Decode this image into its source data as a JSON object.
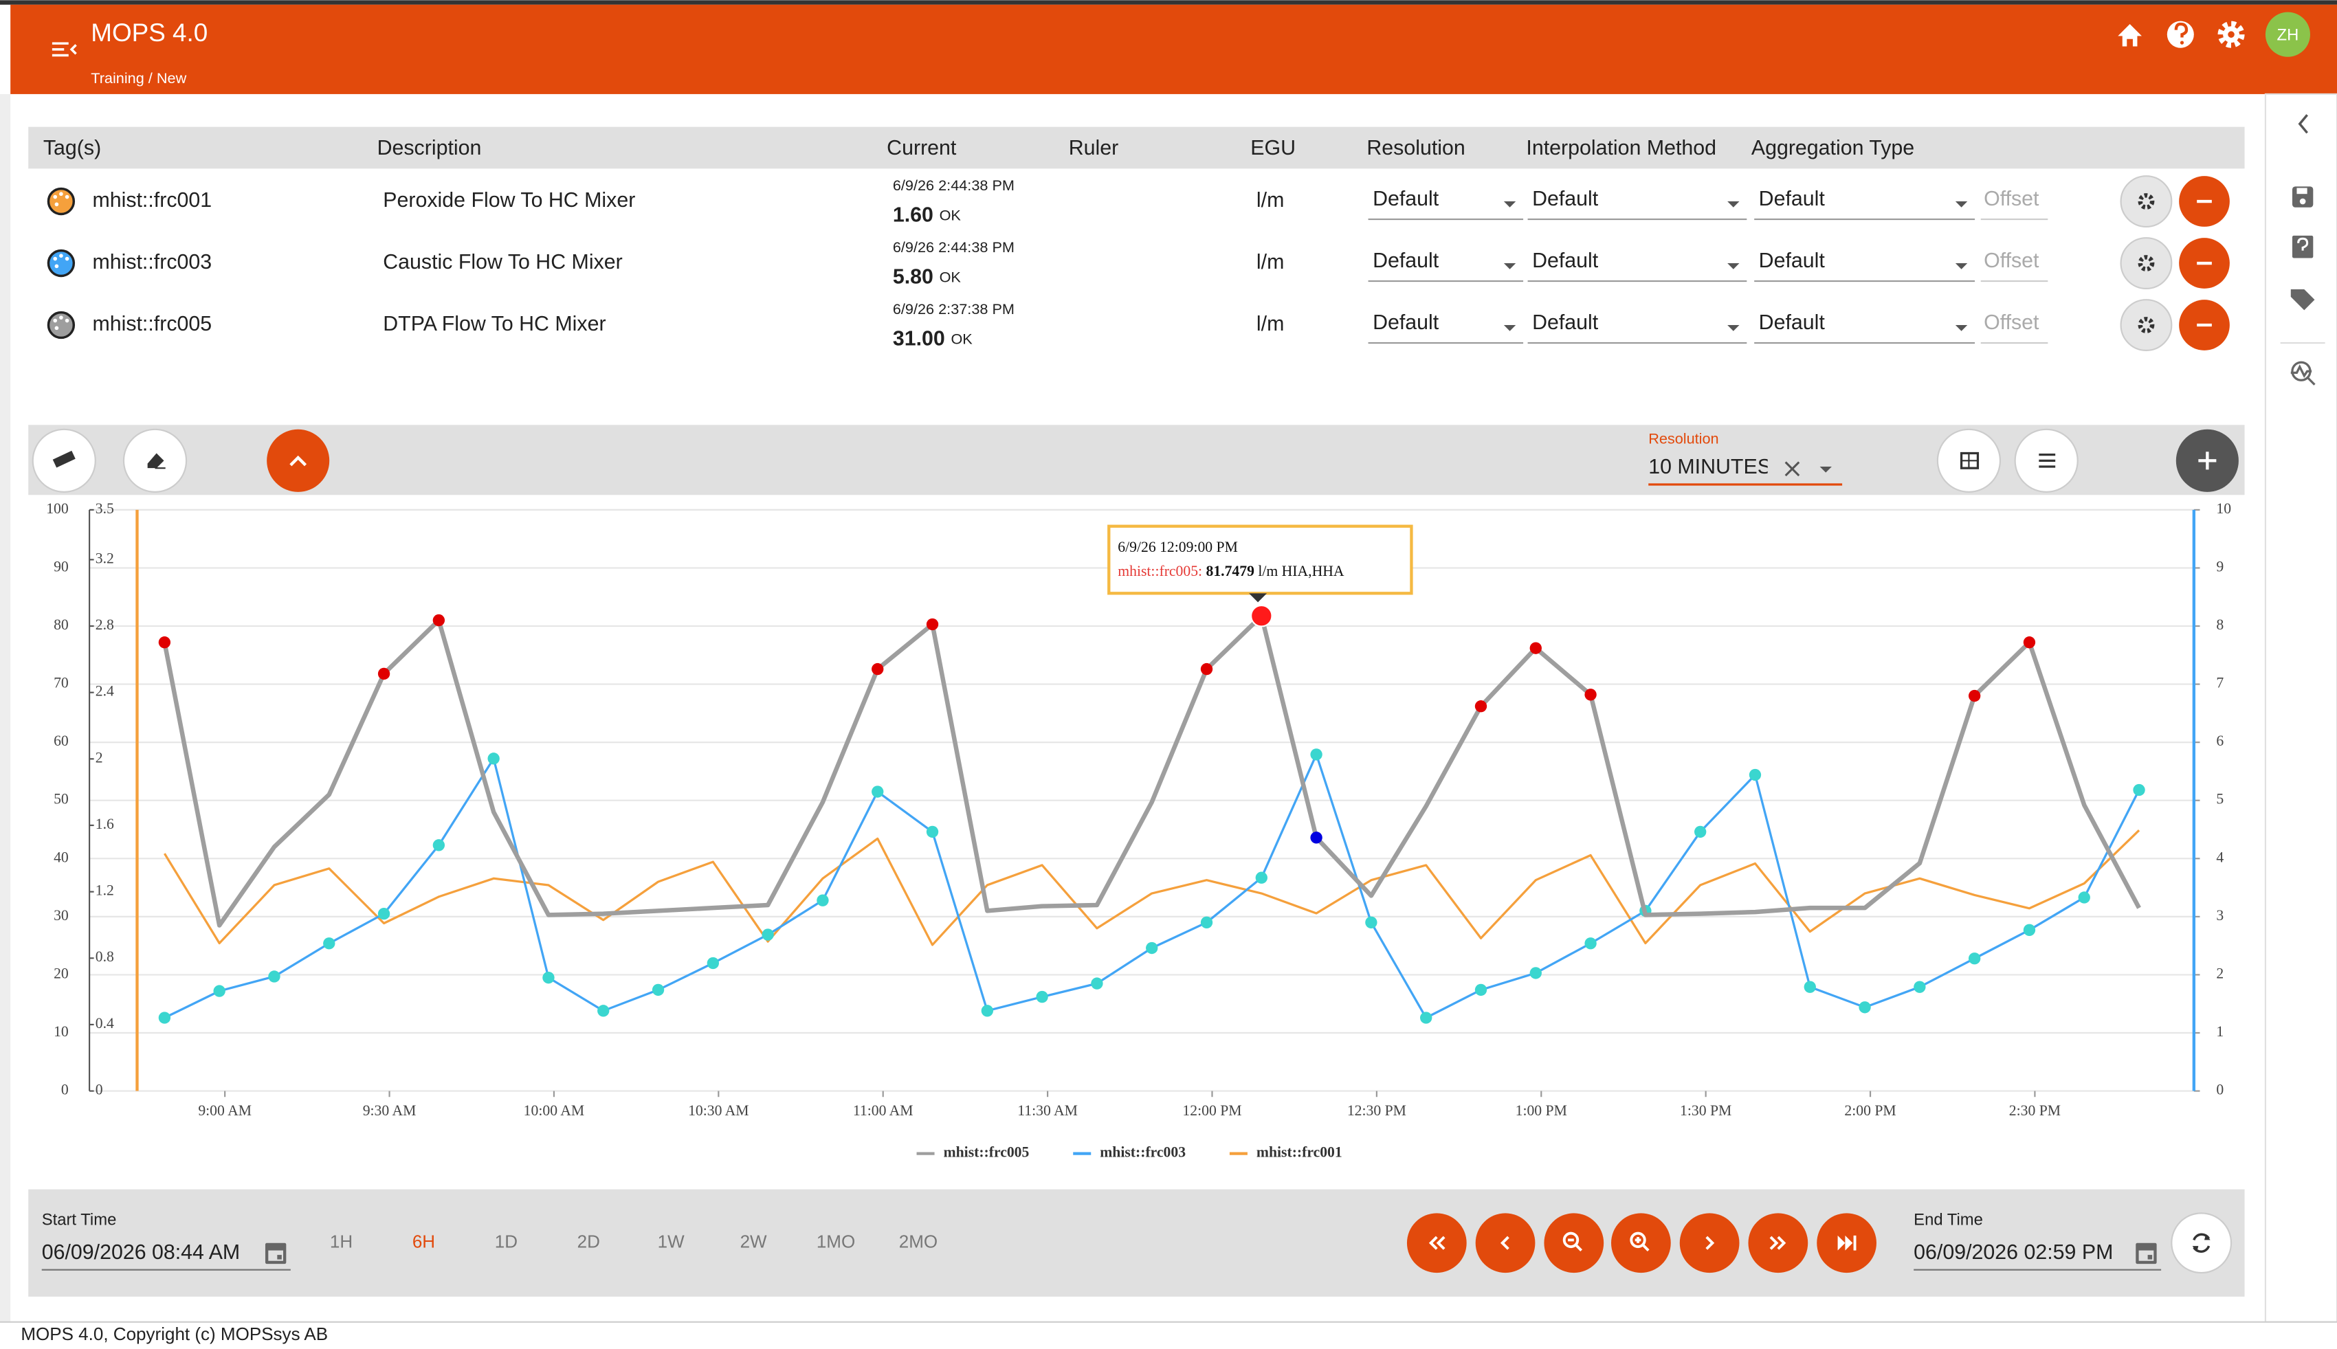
{
  "header": {
    "title": "MOPS 4.0",
    "breadcrumb": [
      "Training",
      "/",
      "New"
    ],
    "user_initials": "ZH"
  },
  "table": {
    "columns": [
      "Tag(s)",
      "Description",
      "Current",
      "Ruler",
      "EGU",
      "Resolution",
      "Interpolation Method",
      "Aggregation Type"
    ],
    "rows": [
      {
        "color": "#f5a03c",
        "tag": "mhist::frc001",
        "description": "Peroxide Flow To HC Mixer",
        "timestamp": "6/9/26 2:44:38 PM",
        "value": "1.60",
        "status": "OK",
        "egu": "l/m",
        "resolution": "Default",
        "interpolation": "Default",
        "aggregation": "Default",
        "offset": "Offset"
      },
      {
        "color": "#42a5f5",
        "tag": "mhist::frc003",
        "description": "Caustic Flow To HC Mixer",
        "timestamp": "6/9/26 2:44:38 PM",
        "value": "5.80",
        "status": "OK",
        "egu": "l/m",
        "resolution": "Default",
        "interpolation": "Default",
        "aggregation": "Default",
        "offset": "Offset"
      },
      {
        "color": "#9e9e9e",
        "tag": "mhist::frc005",
        "description": "DTPA Flow To HC Mixer",
        "timestamp": "6/9/26 2:37:38 PM",
        "value": "31.00",
        "status": "OK",
        "egu": "l/m",
        "resolution": "Default",
        "interpolation": "Default",
        "aggregation": "Default",
        "offset": "Offset"
      }
    ]
  },
  "toolbar": {
    "resolution_label": "Resolution",
    "resolution_value": "10 MINUTES"
  },
  "chart_data": {
    "type": "line",
    "x": [
      "08:49",
      "08:59",
      "09:09",
      "09:19",
      "09:29",
      "09:39",
      "09:49",
      "09:59",
      "10:09",
      "10:19",
      "10:29",
      "10:39",
      "10:49",
      "10:59",
      "11:09",
      "11:19",
      "11:29",
      "11:39",
      "11:49",
      "11:59",
      "12:09",
      "12:19",
      "12:29",
      "12:39",
      "12:49",
      "12:59",
      "13:09",
      "13:19",
      "13:29",
      "13:39",
      "13:49",
      "13:59",
      "14:09",
      "14:19",
      "14:29",
      "14:39",
      "14:49"
    ],
    "xlim": [
      "08:44",
      "14:59"
    ],
    "xticks": [
      {
        "value": "09:00",
        "label": "9:00 AM"
      },
      {
        "value": "09:30",
        "label": "9:30 AM"
      },
      {
        "value": "10:00",
        "label": "10:00 AM"
      },
      {
        "value": "10:30",
        "label": "10:30 AM"
      },
      {
        "value": "11:00",
        "label": "11:00 AM"
      },
      {
        "value": "11:30",
        "label": "11:30 AM"
      },
      {
        "value": "12:00",
        "label": "12:00 PM"
      },
      {
        "value": "12:30",
        "label": "12:30 PM"
      },
      {
        "value": "13:00",
        "label": "1:00 PM"
      },
      {
        "value": "13:30",
        "label": "1:30 PM"
      },
      {
        "value": "14:00",
        "label": "2:00 PM"
      },
      {
        "value": "14:30",
        "label": "2:30 PM"
      }
    ],
    "ylim": [
      0,
      100
    ],
    "yticks": [
      0,
      10,
      20,
      30,
      40,
      50,
      60,
      70,
      80,
      90,
      100
    ],
    "y3lim": [
      0,
      3.5
    ],
    "y3ticks": [
      0,
      0.4,
      0.8,
      1.2,
      1.6,
      2,
      2.4,
      2.8,
      3.2,
      3.5
    ],
    "y2lim": [
      0,
      10
    ],
    "y2ticks": [
      0,
      1,
      2,
      3,
      4,
      5,
      6,
      7,
      8,
      9,
      10
    ],
    "grid": true,
    "series": [
      {
        "name": "mhist::frc005",
        "color": "#9e9e9e",
        "axis": "y",
        "values": [
          77.2,
          28.5,
          42,
          51,
          71.8,
          81,
          48,
          30.3,
          30.5,
          31,
          31.5,
          32,
          49.7,
          72.6,
          80.3,
          31,
          31.8,
          32,
          49.7,
          72.6,
          81.7479,
          43.6,
          33.6,
          49,
          66.2,
          76.2,
          68.2,
          30.3,
          30.5,
          30.8,
          31.5,
          31.5,
          39.2,
          68,
          77.2,
          49.2,
          31.5
        ]
      },
      {
        "name": "mhist::frc003",
        "color": "#42a5f5",
        "axis": "y2",
        "values": [
          1.26,
          1.72,
          1.97,
          2.54,
          3.05,
          4.23,
          5.72,
          1.95,
          1.38,
          1.74,
          2.2,
          2.69,
          3.28,
          5.15,
          4.46,
          1.38,
          1.62,
          1.85,
          2.46,
          2.9,
          3.67,
          5.79,
          2.9,
          1.26,
          1.74,
          2.03,
          2.54,
          3.1,
          4.46,
          5.44,
          1.79,
          1.44,
          1.79,
          2.28,
          2.77,
          3.33,
          5.18
        ]
      },
      {
        "name": "mhist::frc001",
        "color": "#f5a03c",
        "axis": "y3",
        "values": [
          1.43,
          0.89,
          1.24,
          1.34,
          1.01,
          1.17,
          1.28,
          1.24,
          1.03,
          1.26,
          1.38,
          0.9,
          1.28,
          1.52,
          0.88,
          1.24,
          1.36,
          0.98,
          1.19,
          1.27,
          1.19,
          1.07,
          1.27,
          1.36,
          0.92,
          1.27,
          1.42,
          0.89,
          1.24,
          1.37,
          0.96,
          1.19,
          1.28,
          1.18,
          1.1,
          1.25,
          1.57
        ]
      }
    ],
    "tooltip": {
      "title": "6/9/26 12:09:00 PM",
      "label": "mhist::frc005:",
      "unit": "l/m HIA,HHA"
    }
  },
  "time_bar": {
    "start_label": "Start Time",
    "start_value": "06/09/2026 08:44 AM",
    "ranges": [
      "1H",
      "6H",
      "1D",
      "2D",
      "1W",
      "2W",
      "1MO",
      "2MO"
    ],
    "active_range": 1,
    "end_label": "End Time",
    "end_value": "06/09/2026 02:59 PM"
  },
  "footer": {
    "text": "MOPS 4.0, Copyright (c) MOPSsys AB"
  }
}
